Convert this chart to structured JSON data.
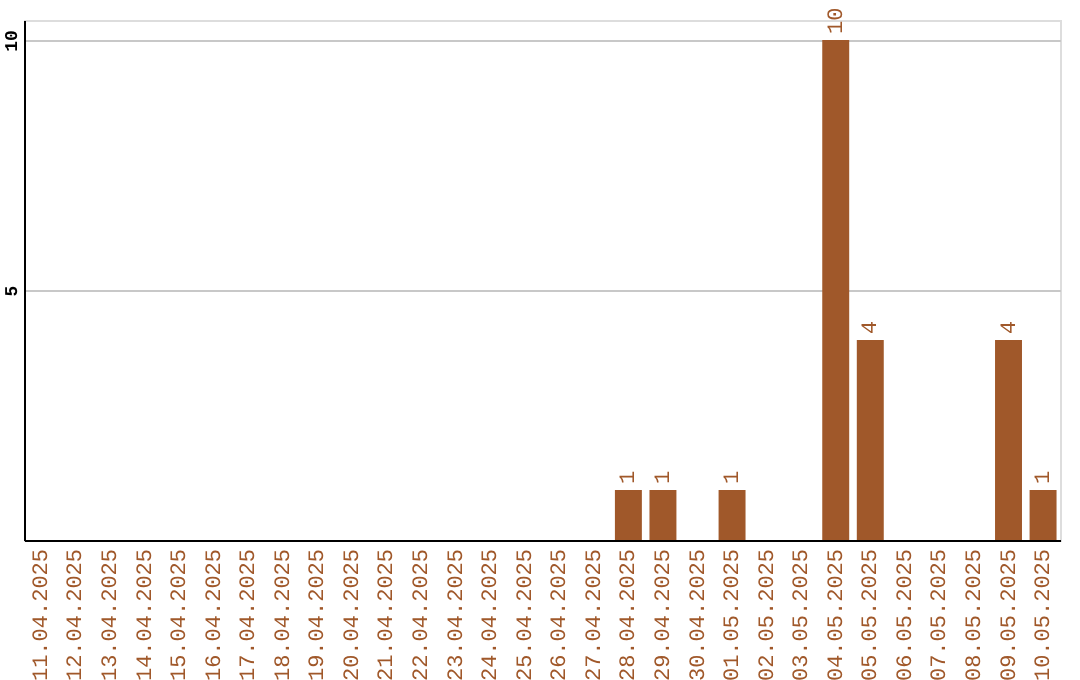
{
  "chart_data": {
    "type": "bar",
    "categories": [
      "11.04.2025",
      "12.04.2025",
      "13.04.2025",
      "14.04.2025",
      "15.04.2025",
      "16.04.2025",
      "17.04.2025",
      "18.04.2025",
      "19.04.2025",
      "20.04.2025",
      "21.04.2025",
      "22.04.2025",
      "23.04.2025",
      "24.04.2025",
      "25.04.2025",
      "26.04.2025",
      "27.04.2025",
      "28.04.2025",
      "29.04.2025",
      "30.04.2025",
      "01.05.2025",
      "02.05.2025",
      "03.05.2025",
      "04.05.2025",
      "05.05.2025",
      "06.05.2025",
      "07.05.2025",
      "08.05.2025",
      "09.05.2025",
      "10.05.2025"
    ],
    "values": [
      0,
      0,
      0,
      0,
      0,
      0,
      0,
      0,
      0,
      0,
      0,
      0,
      0,
      0,
      0,
      0,
      0,
      1,
      1,
      0,
      1,
      0,
      0,
      10,
      4,
      0,
      0,
      0,
      4,
      1
    ],
    "value_labels": [
      null,
      null,
      null,
      null,
      null,
      null,
      null,
      null,
      null,
      null,
      null,
      null,
      null,
      null,
      null,
      null,
      null,
      "1",
      "1",
      null,
      "1",
      null,
      null,
      "10",
      "4",
      null,
      null,
      null,
      "4",
      "1"
    ],
    "color": "#a0582a",
    "ylim": [
      0,
      10.4
    ],
    "yticks": [
      5,
      10
    ],
    "grid": "y"
  }
}
